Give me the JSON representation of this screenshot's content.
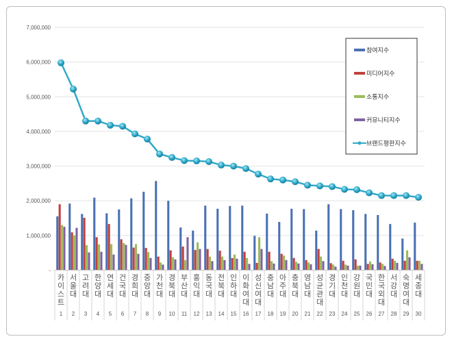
{
  "chart_data": {
    "type": "bar",
    "title": "",
    "xlabel": "",
    "ylabel": "",
    "ylim": [
      0,
      7000000
    ],
    "yticks": [
      "-",
      "1,000,000",
      "2,000,000",
      "3,000,000",
      "4,000,000",
      "5,000,000",
      "6,000,000",
      "7,000,000"
    ],
    "grid": true,
    "legend_position": "top-right",
    "categories": [
      "카이스트",
      "서울대",
      "고려대",
      "한양대",
      "연세대",
      "건국대",
      "경희대",
      "중앙대",
      "가천대",
      "경북대",
      "부산대",
      "홍익대",
      "동국대",
      "전북대",
      "인하대",
      "이화여대",
      "성신여대",
      "충남대",
      "아주대",
      "충북대",
      "영남대",
      "성균관대",
      "경기대",
      "인천대",
      "강원대",
      "국민대",
      "한국외대",
      "서강대",
      "숙명여대",
      "세종대"
    ],
    "ranks": [
      "1",
      "2",
      "3",
      "4",
      "5",
      "6",
      "7",
      "8",
      "9",
      "10",
      "11",
      "12",
      "13",
      "14",
      "15",
      "16",
      "17",
      "18",
      "19",
      "20",
      "21",
      "22",
      "23",
      "24",
      "25",
      "26",
      "27",
      "28",
      "29",
      "30"
    ],
    "series": [
      {
        "name": "참여지수",
        "type": "bar",
        "color": "#4a71b5",
        "values": [
          1550000,
          1920000,
          1620000,
          2090000,
          1640000,
          1750000,
          2070000,
          2260000,
          2570000,
          2000000,
          1230000,
          1140000,
          1860000,
          1770000,
          1850000,
          1860000,
          990000,
          1630000,
          1390000,
          1770000,
          1760000,
          1140000,
          1900000,
          1760000,
          1730000,
          1620000,
          1590000,
          1330000,
          910000,
          1370000
        ]
      },
      {
        "name": "미디어지수",
        "type": "bar",
        "color": "#c0413d",
        "values": [
          1900000,
          1090000,
          1510000,
          950000,
          1330000,
          890000,
          650000,
          640000,
          390000,
          570000,
          680000,
          580000,
          610000,
          560000,
          350000,
          530000,
          210000,
          530000,
          470000,
          350000,
          290000,
          610000,
          200000,
          270000,
          310000,
          180000,
          220000,
          330000,
          270000,
          270000
        ]
      },
      {
        "name": "소통지수",
        "type": "bar",
        "color": "#9bbb59",
        "values": [
          1300000,
          1000000,
          720000,
          740000,
          750000,
          780000,
          750000,
          520000,
          220000,
          370000,
          290000,
          800000,
          390000,
          390000,
          450000,
          350000,
          950000,
          260000,
          420000,
          240000,
          220000,
          390000,
          160000,
          160000,
          130000,
          250000,
          180000,
          270000,
          570000,
          270000
        ]
      },
      {
        "name": "커뮤니티지수",
        "type": "bar",
        "color": "#7e62a1",
        "values": [
          1250000,
          1220000,
          510000,
          530000,
          450000,
          730000,
          470000,
          350000,
          160000,
          310000,
          950000,
          610000,
          260000,
          290000,
          330000,
          180000,
          610000,
          190000,
          290000,
          190000,
          170000,
          260000,
          100000,
          130000,
          130000,
          170000,
          120000,
          210000,
          370000,
          180000
        ]
      },
      {
        "name": "브랜드평판지수",
        "type": "line",
        "color": "#31a9c9",
        "values": [
          5980000,
          5220000,
          4300000,
          4300000,
          4180000,
          4150000,
          3930000,
          3780000,
          3350000,
          3250000,
          3160000,
          3150000,
          3130000,
          3030000,
          3000000,
          2930000,
          2770000,
          2630000,
          2600000,
          2550000,
          2450000,
          2430000,
          2410000,
          2330000,
          2320000,
          2230000,
          2150000,
          2150000,
          2150000,
          2100000
        ]
      }
    ]
  }
}
